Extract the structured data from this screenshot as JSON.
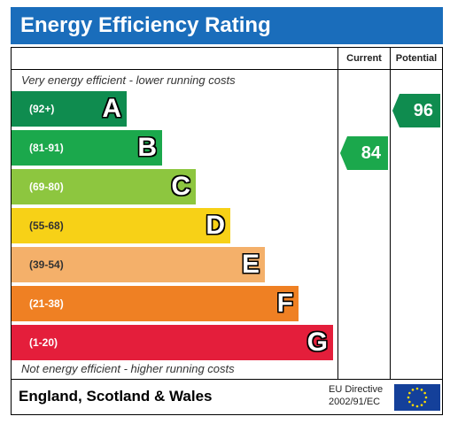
{
  "title": "Energy Efficiency Rating",
  "columns": {
    "current": "Current",
    "potential": "Potential"
  },
  "top_caption": "Very energy efficient - lower running costs",
  "bottom_caption": "Not energy efficient - higher running costs",
  "bands": [
    {
      "range": "(92+)",
      "letter": "A",
      "color": "#0f8c4f"
    },
    {
      "range": "(81-91)",
      "letter": "B",
      "color": "#1ba84c"
    },
    {
      "range": "(69-80)",
      "letter": "C",
      "color": "#8dc63f"
    },
    {
      "range": "(55-68)",
      "letter": "D",
      "color": "#f7d117"
    },
    {
      "range": "(39-54)",
      "letter": "E",
      "color": "#f4b06a"
    },
    {
      "range": "(21-38)",
      "letter": "F",
      "color": "#ef8023"
    },
    {
      "range": "(1-20)",
      "letter": "G",
      "color": "#e41e3b"
    }
  ],
  "current": {
    "value": "84",
    "color": "#1ba84c"
  },
  "potential": {
    "value": "96",
    "color": "#0f8c4f"
  },
  "region": "England, Scotland & Wales",
  "directive": {
    "line1": "EU Directive",
    "line2": "2002/91/EC"
  }
}
